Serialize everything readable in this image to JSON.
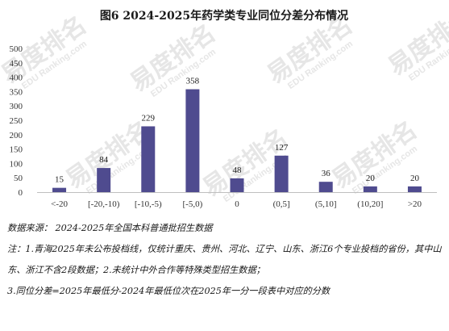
{
  "chart_data": {
    "type": "bar",
    "title": "图6  2024-2025年药学类专业同位分差分布情况",
    "categories": [
      "<-20",
      "[-20,-10)",
      "[-10,-5)",
      "[-5,0)",
      "0",
      "(0,5]",
      "(5,10]",
      "(10,20]",
      ">20"
    ],
    "values": [
      15,
      84,
      229,
      358,
      48,
      127,
      36,
      20,
      20
    ],
    "yticks": [
      0,
      50,
      100,
      150,
      200,
      250,
      300,
      350,
      400,
      450,
      500
    ],
    "ylim": [
      0,
      500
    ],
    "xlabel": "",
    "ylabel": "",
    "grid": false,
    "bar_color": "#4f4b8f"
  },
  "watermark": {
    "text": "易度排名",
    "sub": "EDU Ranking.com"
  },
  "notes": {
    "source": "数据来源： 2024-2025年全国本科普通批招生数据",
    "note1": "注：1.青海2025年未公布投档线，仅统计重庆、贵州、河北、辽宁、山东、浙江6个专业投档的省份，其中山东、浙江不含2段数据；2.未统计中外合作等特殊类型招生数据；",
    "note2": "3.同位分差=2025年最低分-2024年最低位次在2025年一分一段表中对应的分数"
  }
}
